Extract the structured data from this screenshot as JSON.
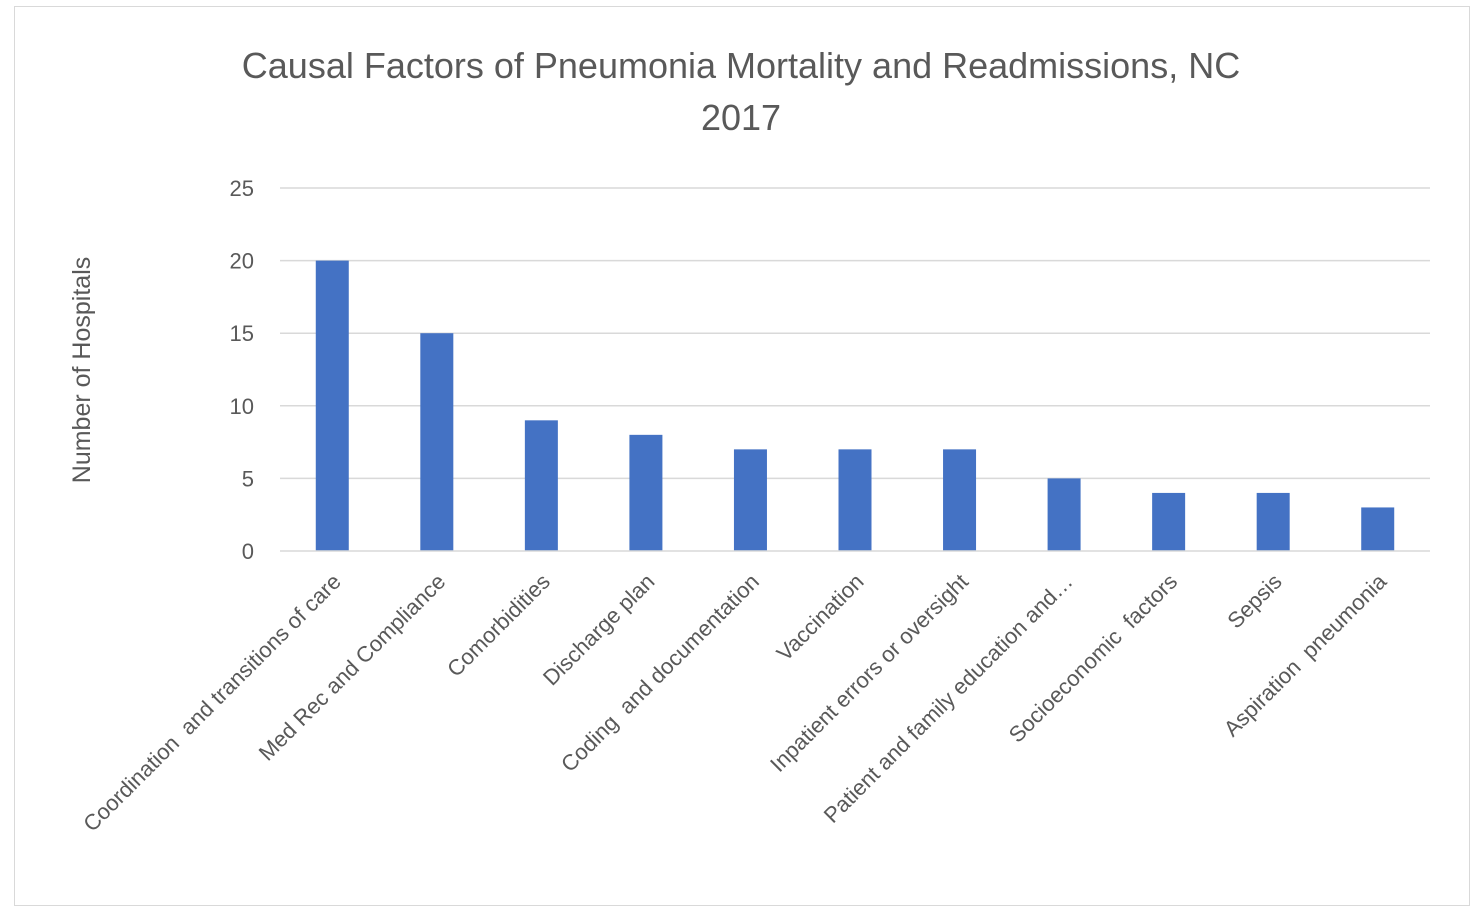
{
  "chart_data": {
    "type": "bar",
    "title_line1": "Causal Factors of Pneumonia Mortality and Readmissions, NC",
    "title_line2": "2017",
    "xlabel": "",
    "ylabel": "Number of Hospitals",
    "ylim": [
      0,
      25
    ],
    "yticks": [
      "0",
      "5",
      "10",
      "15",
      "20",
      "25"
    ],
    "grid": true,
    "legend": "none",
    "bar_color": "#4472C4",
    "categories": [
      "Coordination  and transitions of care",
      "Med Rec and Compliance",
      "Comorbidities",
      "Discharge plan",
      "Coding  and documentation",
      "Vaccination",
      "Inpatient errors or oversight",
      "Patient and family education and…",
      "Socioeconomic  factors",
      "Sepsis",
      "Aspiration  pneumonia"
    ],
    "values": [
      20,
      15,
      9,
      8,
      7,
      7,
      7,
      5,
      4,
      4,
      3
    ]
  }
}
